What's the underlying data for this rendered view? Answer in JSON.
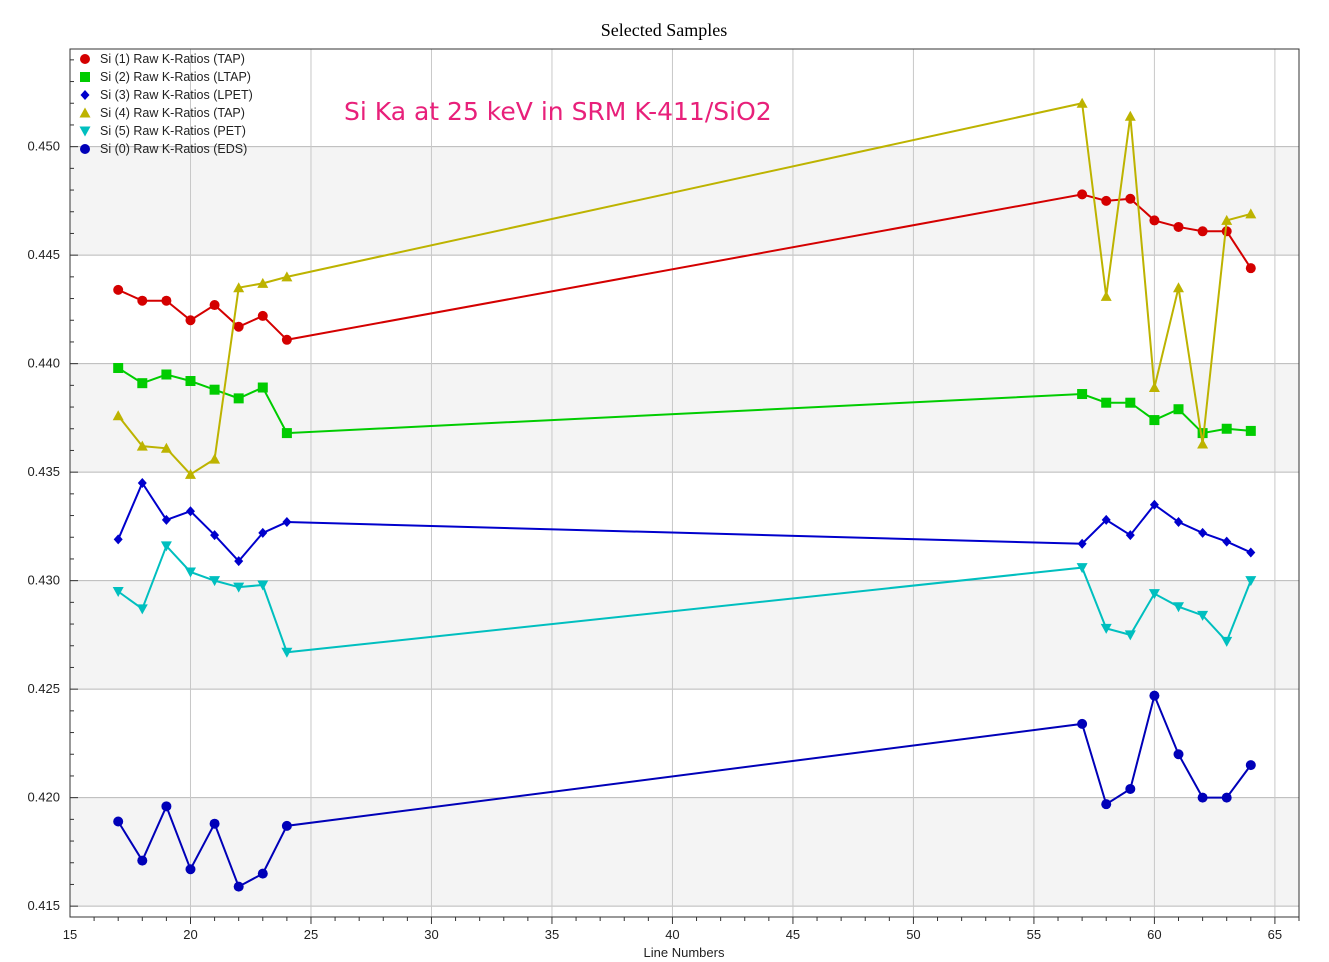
{
  "chart_data": {
    "type": "line",
    "title": "Selected Samples",
    "xlabel": "Line Numbers",
    "ylabel": "",
    "annotation": "Si Ka at 25 keV in SRM K-411/SiO2",
    "xlim": [
      15,
      66
    ],
    "ylim": [
      0.4145,
      0.4545
    ],
    "x_ticks": [
      15,
      20,
      25,
      30,
      35,
      40,
      45,
      50,
      55,
      60,
      65
    ],
    "y_ticks": [
      0.415,
      0.42,
      0.425,
      0.43,
      0.435,
      0.44,
      0.445,
      0.45
    ],
    "y_tick_labels": [
      "0.415",
      "0.420",
      "0.425",
      "0.430",
      "0.435",
      "0.440",
      "0.445",
      "0.450"
    ],
    "grid": true,
    "legend_position": "top-left",
    "x": [
      17,
      18,
      19,
      20,
      21,
      22,
      23,
      24,
      57,
      58,
      59,
      60,
      61,
      62,
      63,
      64
    ],
    "series": [
      {
        "name": "Si (1) Raw K-Ratios (TAP)",
        "color": "#d40000",
        "marker": "circle",
        "values": [
          0.4434,
          0.4429,
          0.4429,
          0.442,
          0.4427,
          0.4417,
          0.4422,
          0.4411,
          0.4478,
          0.4475,
          0.4476,
          0.4466,
          0.4463,
          0.4461,
          0.4461,
          0.4444
        ]
      },
      {
        "name": "Si (2) Raw K-Ratios (LTAP)",
        "color": "#00cc00",
        "marker": "square",
        "values": [
          0.4398,
          0.4391,
          0.4395,
          0.4392,
          0.4388,
          0.4384,
          0.4389,
          0.4368,
          0.4386,
          0.4382,
          0.4382,
          0.4374,
          0.4379,
          0.4368,
          0.437,
          0.4369
        ]
      },
      {
        "name": "Si (3) Raw K-Ratios (LPET)",
        "color": "#0000cc",
        "marker": "diamond",
        "values": [
          0.4319,
          0.4345,
          0.4328,
          0.4332,
          0.4321,
          0.4309,
          0.4322,
          0.4327,
          0.4317,
          0.4328,
          0.4321,
          0.4335,
          0.4327,
          0.4322,
          0.4318,
          0.4313
        ]
      },
      {
        "name": "Si (4) Raw K-Ratios (TAP)",
        "color": "#bdb300",
        "marker": "triangle-up",
        "values": [
          0.4376,
          0.4362,
          0.4361,
          0.4349,
          0.4356,
          0.4435,
          0.4437,
          0.444,
          0.452,
          0.4431,
          0.4514,
          0.4389,
          0.4435,
          0.4363,
          0.4466,
          0.4469
        ]
      },
      {
        "name": "Si (5) Raw K-Ratios (PET)",
        "color": "#00bfbf",
        "marker": "triangle-down",
        "values": [
          0.4295,
          0.4287,
          0.4316,
          0.4304,
          0.43,
          0.4297,
          0.4298,
          0.4267,
          0.4306,
          0.4278,
          0.4275,
          0.4294,
          0.4288,
          0.4284,
          0.4272,
          0.43
        ]
      },
      {
        "name": "Si (0) Raw K-Ratios (EDS)",
        "color": "#0000b8",
        "marker": "circle",
        "values": [
          0.4189,
          0.4171,
          0.4196,
          0.4167,
          0.4188,
          0.4159,
          0.4165,
          0.4187,
          0.4234,
          0.4197,
          0.4204,
          0.4247,
          0.422,
          0.42,
          0.42,
          0.4215
        ]
      }
    ]
  }
}
